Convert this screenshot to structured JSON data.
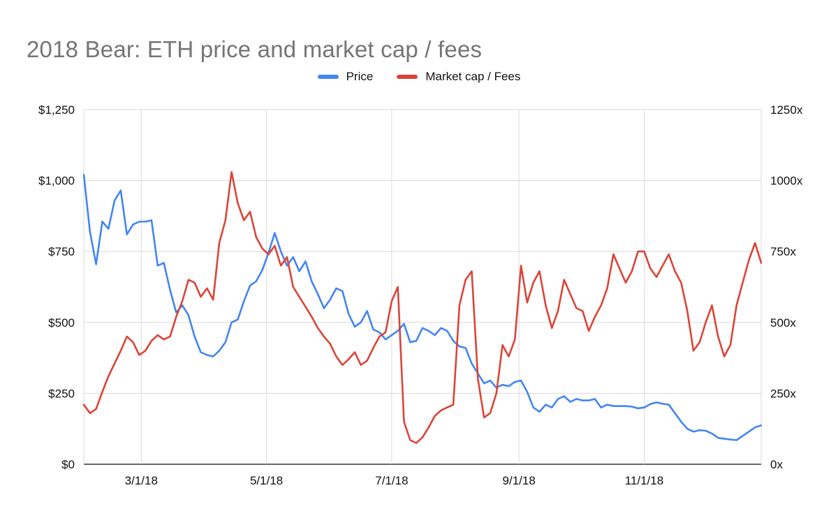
{
  "chart_data": {
    "type": "line",
    "title": "2018 Bear: ETH price and market cap / fees",
    "legend_position": "top",
    "grid": true,
    "point_interval_days": 3,
    "x_span_days": 330,
    "y_step": 250,
    "left_axis": {
      "min": 0,
      "max": 1250,
      "ticks": [
        "$0",
        "$250",
        "$500",
        "$750",
        "$1,000",
        "$1,250"
      ]
    },
    "right_axis": {
      "min": 0,
      "max": 1250,
      "ticks": [
        "0x",
        "250x",
        "500x",
        "750x",
        "1000x",
        "1250x"
      ]
    },
    "x_ticks": [
      {
        "label": "3/1/18",
        "day": 28
      },
      {
        "label": "5/1/18",
        "day": 89
      },
      {
        "label": "7/1/18",
        "day": 150
      },
      {
        "label": "9/1/18",
        "day": 212
      },
      {
        "label": "11/1/18",
        "day": 273
      }
    ],
    "x": [
      "2/1",
      "2/4",
      "2/7",
      "2/10",
      "2/13",
      "2/16",
      "2/19",
      "2/22",
      "2/25",
      "2/28",
      "3/3",
      "3/6",
      "3/9",
      "3/12",
      "3/15",
      "3/18",
      "3/21",
      "3/24",
      "3/27",
      "3/30",
      "4/2",
      "4/5",
      "4/8",
      "4/11",
      "4/14",
      "4/17",
      "4/20",
      "4/23",
      "4/26",
      "4/29",
      "5/2",
      "5/5",
      "5/8",
      "5/11",
      "5/14",
      "5/17",
      "5/20",
      "5/23",
      "5/26",
      "5/29",
      "6/1",
      "6/4",
      "6/7",
      "6/10",
      "6/13",
      "6/16",
      "6/19",
      "6/22",
      "6/25",
      "6/28",
      "7/1",
      "7/4",
      "7/7",
      "7/10",
      "7/13",
      "7/16",
      "7/19",
      "7/22",
      "7/25",
      "7/28",
      "7/31",
      "8/3",
      "8/6",
      "8/9",
      "8/12",
      "8/15",
      "8/18",
      "8/21",
      "8/24",
      "8/27",
      "8/30",
      "9/2",
      "9/5",
      "9/8",
      "9/11",
      "9/14",
      "9/17",
      "9/20",
      "9/23",
      "9/26",
      "9/29",
      "10/2",
      "10/5",
      "10/8",
      "10/11",
      "10/14",
      "10/17",
      "10/20",
      "10/23",
      "10/26",
      "10/29",
      "11/1",
      "11/4",
      "11/7",
      "11/10",
      "11/13",
      "11/16",
      "11/19",
      "11/22",
      "11/25",
      "11/28",
      "12/1",
      "12/4",
      "12/7",
      "12/10",
      "12/13",
      "12/16",
      "12/19",
      "12/22",
      "12/25",
      "12/28"
    ],
    "series": [
      {
        "name": "Price",
        "axis": "left",
        "color": "#4285f4",
        "values": [
          1020,
          820,
          705,
          855,
          830,
          930,
          965,
          810,
          845,
          855,
          855,
          860,
          700,
          710,
          615,
          535,
          560,
          525,
          450,
          395,
          385,
          380,
          400,
          430,
          500,
          510,
          575,
          630,
          645,
          685,
          745,
          815,
          750,
          700,
          730,
          680,
          715,
          645,
          600,
          550,
          580,
          620,
          610,
          530,
          485,
          500,
          540,
          475,
          465,
          440,
          455,
          470,
          495,
          430,
          435,
          480,
          470,
          455,
          480,
          470,
          435,
          415,
          410,
          355,
          320,
          285,
          295,
          270,
          280,
          275,
          290,
          295,
          255,
          200,
          185,
          210,
          200,
          230,
          240,
          220,
          230,
          225,
          225,
          230,
          200,
          210,
          205,
          205,
          205,
          203,
          197,
          200,
          212,
          218,
          213,
          210,
          180,
          150,
          125,
          115,
          120,
          118,
          108,
          93,
          90,
          87,
          85,
          100,
          115,
          130,
          137
        ]
      },
      {
        "name": "Market cap / Fees",
        "axis": "right",
        "color": "#db4437",
        "values": [
          210,
          180,
          195,
          255,
          310,
          355,
          400,
          450,
          430,
          385,
          400,
          435,
          455,
          440,
          450,
          520,
          575,
          650,
          640,
          590,
          620,
          580,
          780,
          860,
          1030,
          920,
          860,
          890,
          800,
          760,
          740,
          770,
          700,
          730,
          625,
          590,
          555,
          520,
          480,
          450,
          425,
          380,
          350,
          370,
          395,
          350,
          365,
          410,
          450,
          465,
          575,
          625,
          150,
          85,
          75,
          95,
          130,
          170,
          190,
          200,
          210,
          560,
          650,
          680,
          300,
          165,
          180,
          250,
          420,
          380,
          440,
          700,
          570,
          640,
          680,
          560,
          480,
          540,
          650,
          600,
          550,
          540,
          470,
          520,
          560,
          620,
          740,
          690,
          640,
          680,
          750,
          750,
          690,
          660,
          700,
          740,
          680,
          640,
          540,
          400,
          430,
          500,
          560,
          450,
          380,
          420,
          560,
          640,
          720,
          780,
          710
        ]
      }
    ]
  }
}
